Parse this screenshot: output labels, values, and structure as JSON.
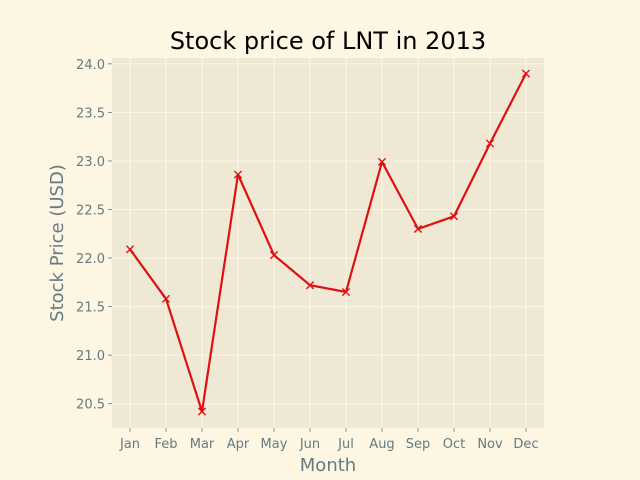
{
  "chart_data": {
    "type": "line",
    "title": "Stock price of LNT in 2013",
    "xlabel": "Month",
    "ylabel": "Stock Price (USD)",
    "categories": [
      "Jan",
      "Feb",
      "Mar",
      "Apr",
      "May",
      "Jun",
      "Jul",
      "Aug",
      "Sep",
      "Oct",
      "Nov",
      "Dec"
    ],
    "series": [
      {
        "values": [
          22.09,
          21.58,
          20.42,
          22.86,
          22.03,
          21.72,
          21.65,
          22.99,
          22.3,
          22.43,
          23.18,
          23.9
        ],
        "color": "#dd1111",
        "marker": "x"
      }
    ],
    "ylim": [
      20.25,
      24.06
    ],
    "yticks": [
      "20.5",
      "21.0",
      "21.5",
      "22.0",
      "22.5",
      "23.0",
      "23.5",
      "24.0"
    ],
    "grid": true,
    "colors": {
      "figure_bg": "#fdf6e3",
      "plot_bg": "#eee8d5",
      "grid": "#fdf6e3",
      "text": "#657b83"
    }
  }
}
